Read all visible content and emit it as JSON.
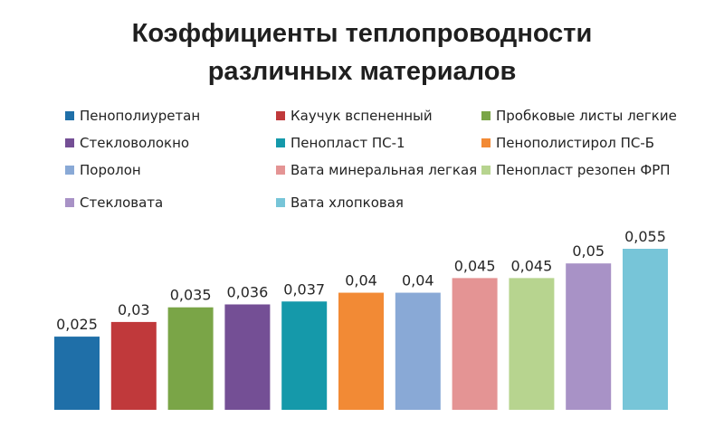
{
  "chart_data": {
    "type": "bar",
    "title": [
      "Коэффициенты теплопроводности",
      "различных материалов"
    ],
    "categories": [
      "Пенополиуретан",
      "Каучук вспененный",
      "Пробковые листы легкие",
      "Стекловолокно",
      "Пенопласт ПС-1",
      "Пенополистирол ПС-Б",
      "Поролон",
      "Вата минеральная легкая",
      "Пенопласт резопен ФРП",
      "Стекловата",
      "Вата хлопковая"
    ],
    "values": [
      0.025,
      0.03,
      0.035,
      0.036,
      0.037,
      0.04,
      0.04,
      0.045,
      0.045,
      0.05,
      0.055
    ],
    "data_labels": [
      "0,025",
      "0,03",
      "0,035",
      "0,036",
      "0,037",
      "0,04",
      "0,04",
      "0,045",
      "0,045",
      "0,05",
      "0,055"
    ],
    "colors": [
      "#1f6fa8",
      "#c0393b",
      "#7aa547",
      "#744f95",
      "#1599aa",
      "#f28a35",
      "#89a9d6",
      "#e49494",
      "#b7d48f",
      "#a892c6",
      "#77c5d8"
    ],
    "legend_position": "top",
    "grid": false,
    "xlabel": "",
    "ylabel": "",
    "ylim": [
      0,
      0.055
    ]
  }
}
